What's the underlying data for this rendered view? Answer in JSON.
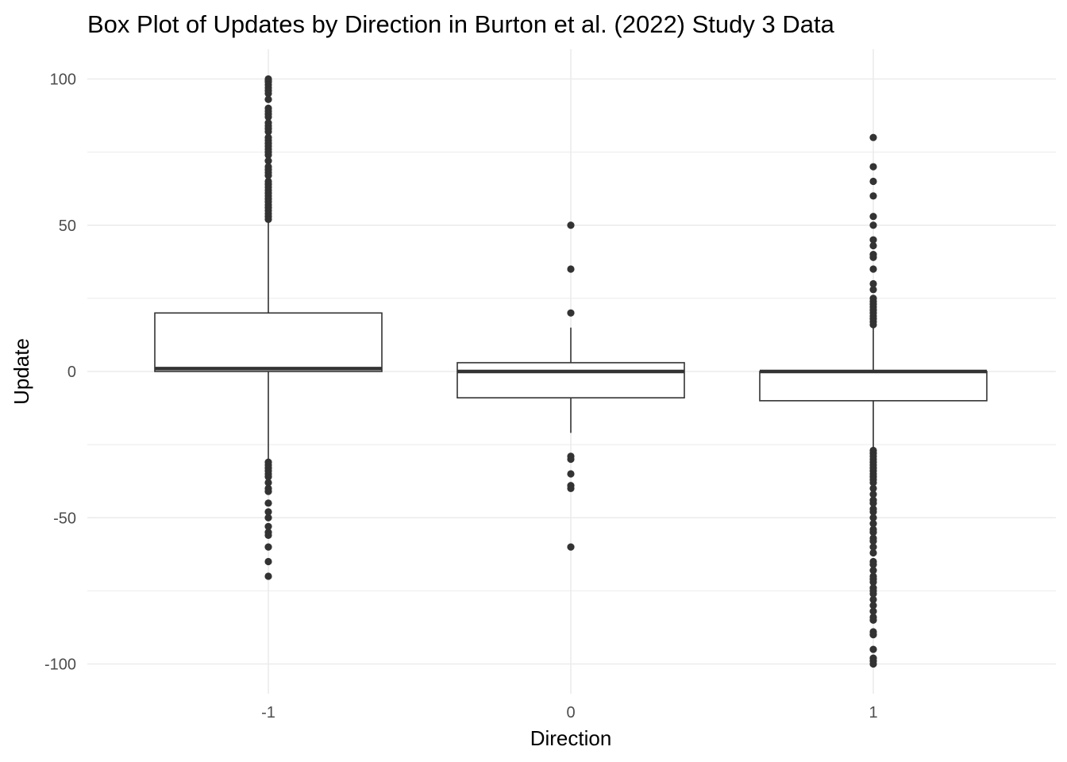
{
  "chart_data": {
    "type": "boxplot",
    "title": "Box Plot of Updates by Direction in Burton et al. (2022) Study 3 Data",
    "xlabel": "Direction",
    "ylabel": "Update",
    "categories": [
      "-1",
      "0",
      "1"
    ],
    "ylim": [
      -110,
      110
    ],
    "yticks": [
      100,
      50,
      0,
      -50,
      -100
    ],
    "y_tick_labels": [
      "100",
      "50",
      "0",
      "-50",
      "-100"
    ],
    "grid": true,
    "colors": {
      "box": "#333333",
      "outlier": "#333333",
      "grid": "#ebebeb",
      "background": "#ffffff"
    },
    "boxes": [
      {
        "category": "-1",
        "q1": 0,
        "median": 1,
        "q3": 20,
        "whisker_low": -30,
        "whisker_high": 51,
        "outliers": [
          100,
          99.5,
          99,
          98,
          97,
          96,
          95,
          93,
          90,
          89,
          88,
          87,
          85,
          84,
          83,
          82,
          80,
          79,
          78,
          77,
          76,
          75,
          74,
          72,
          70,
          69,
          68,
          67,
          65,
          64,
          63,
          62,
          61,
          60,
          59,
          58,
          57,
          56,
          55,
          54,
          53,
          52,
          -31,
          -32,
          -33,
          -34,
          -35,
          -36,
          -38,
          -40,
          -41,
          -45,
          -48,
          -50,
          -53,
          -55,
          -56,
          -60,
          -65,
          -70
        ]
      },
      {
        "category": "0",
        "q1": -9,
        "median": 0,
        "q3": 3,
        "whisker_low": -21,
        "whisker_high": 15,
        "outliers": [
          50,
          35,
          20,
          -29,
          -30,
          -35,
          -39,
          -40,
          -60
        ]
      },
      {
        "category": "1",
        "q1": -10,
        "median": 0,
        "q3": 0,
        "whisker_low": -26,
        "whisker_high": 15,
        "outliers": [
          80,
          70,
          65,
          60,
          53,
          50,
          45,
          43,
          40,
          39,
          35,
          30,
          28,
          25,
          24,
          23,
          22,
          21,
          20,
          19,
          18,
          17,
          16,
          -27,
          -28,
          -29,
          -30,
          -31,
          -32,
          -33,
          -34,
          -35,
          -36,
          -37,
          -38,
          -40,
          -42,
          -44,
          -45,
          -47,
          -48,
          -50,
          -52,
          -54,
          -55,
          -57,
          -58,
          -60,
          -62,
          -65,
          -66,
          -68,
          -70,
          -71,
          -72,
          -74,
          -75,
          -76,
          -78,
          -80,
          -82,
          -84,
          -85,
          -89,
          -90,
          -95,
          -98,
          -99,
          -100
        ]
      }
    ]
  }
}
